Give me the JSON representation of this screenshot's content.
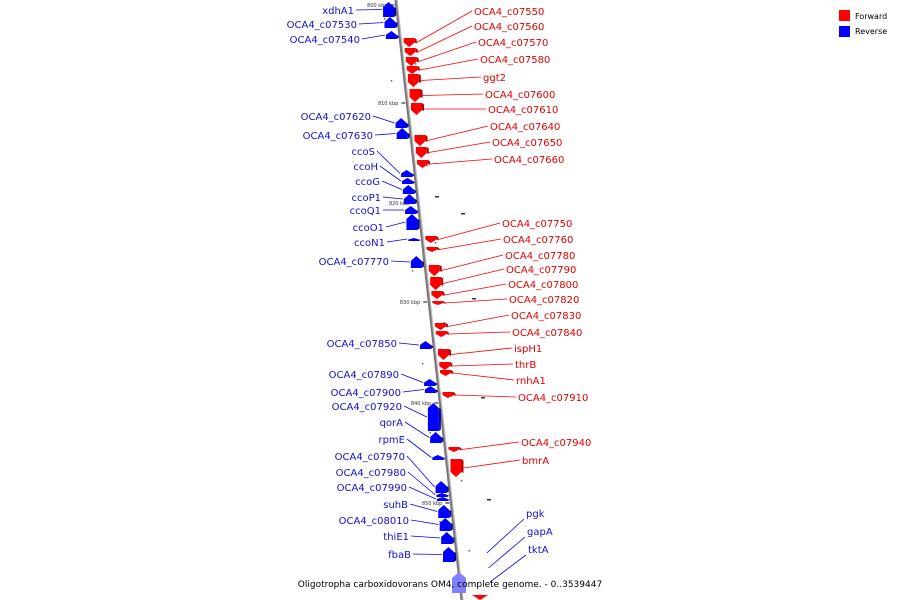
{
  "caption": "Oligotropha carboxidovorans OM4, complete genome. - 0..3539447",
  "legend": [
    {
      "label": "Forward",
      "color": "#ff0000"
    },
    {
      "label": "Reverse",
      "color": "#0000ff"
    }
  ],
  "colors": {
    "forward": "#ff0000",
    "forward_label": "#e00000",
    "reverse": "#0000ff",
    "reverse_label": "#1010d0",
    "backbone": "#888888"
  },
  "kbp_marks": [
    "800 kbp",
    "810 kbp",
    "820 kbp",
    "830 kbp",
    "840 kbp",
    "850 kbp"
  ],
  "forward_genes": [
    "OCA4_c07550",
    "OCA4_c07560",
    "OCA4_c07570",
    "OCA4_c07580",
    "ggt2",
    "OCA4_c07600",
    "OCA4_c07610",
    "OCA4_c07640",
    "OCA4_c07650",
    "OCA4_c07660",
    "OCA4_c07750",
    "OCA4_c07760",
    "OCA4_c07780",
    "OCA4_c07790",
    "OCA4_c07800",
    "OCA4_c07820",
    "OCA4_c07830",
    "OCA4_c07840",
    "ispH1",
    "thrB",
    "rnhA1",
    "OCA4_c07910",
    "OCA4_c07940",
    "bmrA"
  ],
  "reverse_genes": [
    "xdhA1",
    "OCA4_c07530",
    "OCA4_c07540",
    "OCA4_c07620",
    "OCA4_c07630",
    "ccoS",
    "ccoH",
    "ccoG",
    "ccoP1",
    "ccoQ1",
    "ccoO1",
    "ccoN1",
    "OCA4_c07770",
    "OCA4_c07850",
    "OCA4_c07890",
    "OCA4_c07900",
    "OCA4_c07920",
    "qorA",
    "rpmE",
    "OCA4_c07970",
    "OCA4_c07980",
    "OCA4_c07990",
    "suhB",
    "OCA4_c08010",
    "thiE1",
    "fbaB"
  ],
  "other_labels": [
    "pgk",
    "gapA",
    "tktA"
  ]
}
